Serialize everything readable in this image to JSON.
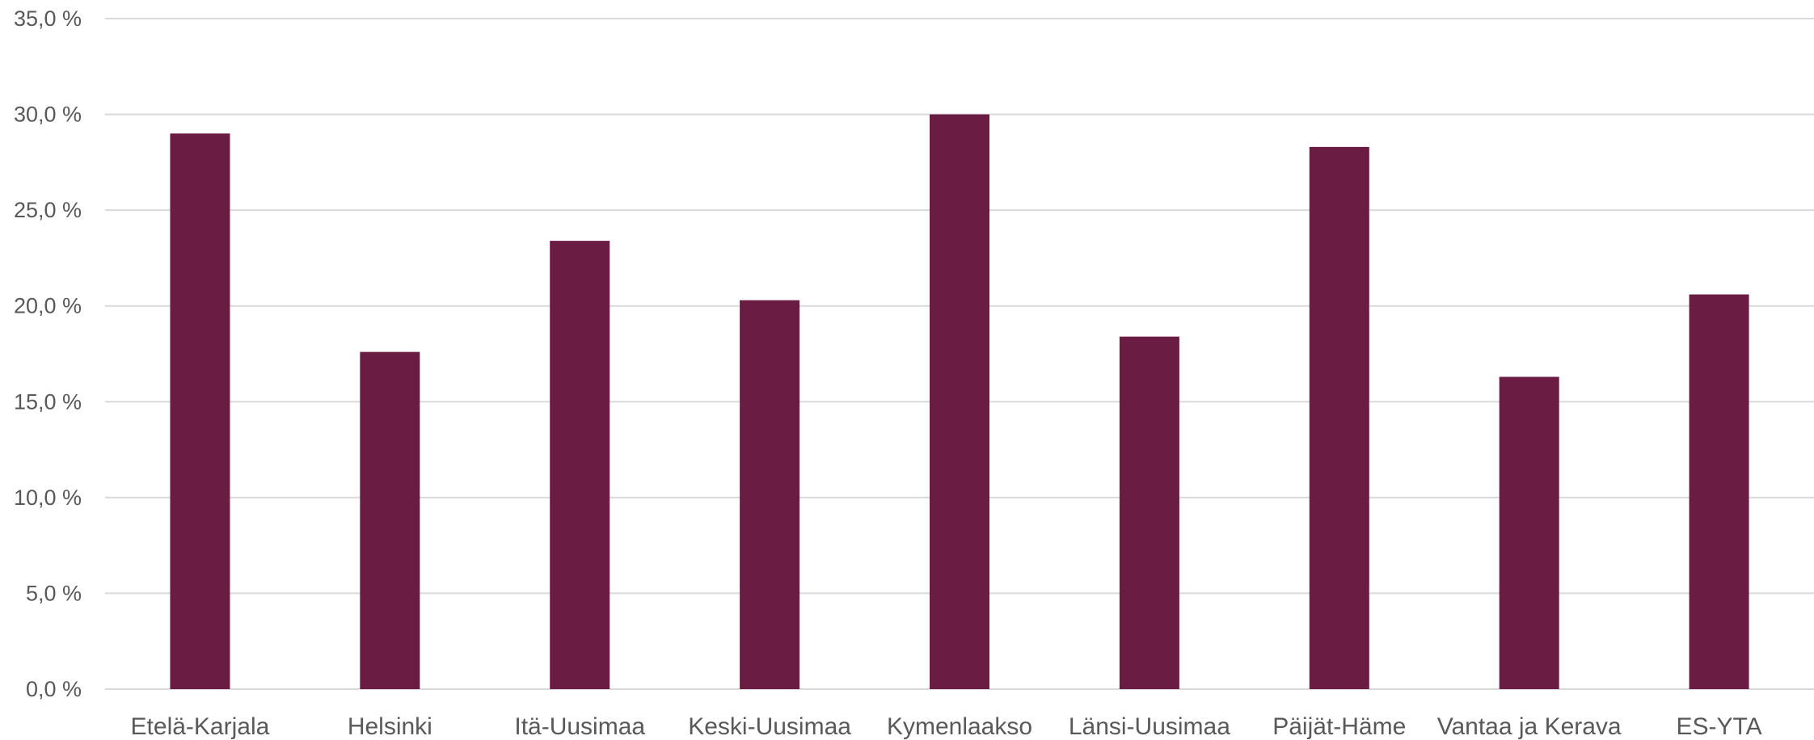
{
  "chart_data": {
    "type": "bar",
    "categories": [
      "Etelä-Karjala",
      "Helsinki",
      "Itä-Uusimaa",
      "Keski-Uusimaa",
      "Kymenlaakso",
      "Länsi-Uusimaa",
      "Päijät-Häme",
      "Vantaa ja Kerava",
      "ES-YTA"
    ],
    "values": [
      29.0,
      17.6,
      23.4,
      20.3,
      30.0,
      18.4,
      28.3,
      16.3,
      20.6
    ],
    "y_tick_labels": [
      "0,0 %",
      "5,0 %",
      "10,0 %",
      "15,0 %",
      "20,0 %",
      "25,0 %",
      "30,0 %",
      "35,0 %"
    ],
    "title": "",
    "xlabel": "",
    "ylabel": "",
    "ylim": [
      0,
      35
    ],
    "y_unit": "%",
    "grid": true,
    "legend": "none",
    "bar_color": "#6b1c42"
  }
}
